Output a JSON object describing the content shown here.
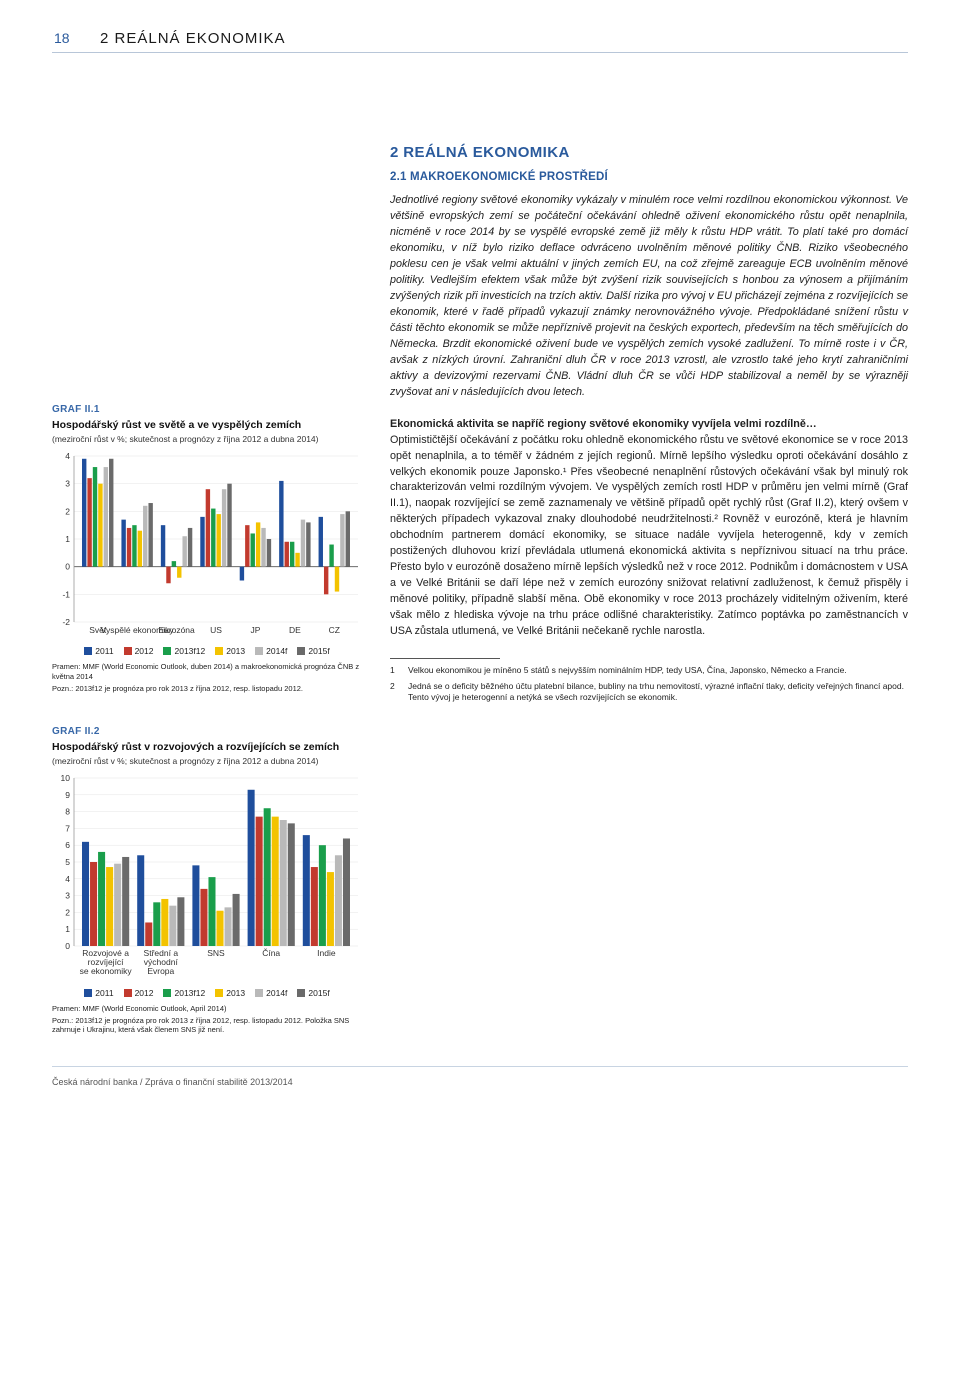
{
  "page": {
    "number": "18",
    "running_head": "2 REÁLNÁ EKONOMIKA",
    "footer": "Česká národní banka / Zpráva o finanční stabilitě 2013/2014"
  },
  "right": {
    "h1": "2 REÁLNÁ EKONOMIKA",
    "h2": "2.1 MAKROEKONOMICKÉ PROSTŘEDÍ",
    "intro": "Jednotlivé regiony světové ekonomiky vykázaly v minulém roce velmi roz­dílnou ekonomickou výkonnost. Ve většině evropských zemí se počáteční očekávání ohledně oživení ekonomického růstu opět nenaplnila, nicméně v roce 2014 by se vyspělé evropské země již měly k růstu HDP vrátit. To platí také pro domácí ekonomiku, v níž bylo riziko deflace odvráceno uvolněním měnové politiky ČNB. Riziko všeobecného poklesu cen je však velmi aktuální v jiných zemích EU, na což zřejmě zareaguje ECB uvolně­ním měnové politiky. Vedlejším efektem však může být zvýšení rizik souvi­sejících s honbou za výnosem a přijímáním zvýšených rizik při investicích na trzích aktiv. Další rizika pro vývoj v EU přicházejí zejména z rozvíjejících se ekonomik, které v řadě případů vykazují známky nerovnovážného vý­voje. Předpokládané snížení růstu v části těchto ekonomik se může ne­příznivě projevit na českých exportech, především na těch směřujících do Německa. Brzdit ekonomické oživení bude ve vyspělých zemích vyso­ké zadlužení. To mírně roste i v ČR, avšak z nízkých úrovní. Zahraniční dluh ČR v roce 2013 vzrostl, ale vzrostlo také jeho krytí zahraničními akti­vy a devizovými rezervami ČNB. Vládní dluh ČR se vůči HDP stabilizoval a neměl by se výrazněji zvyšovat ani v následujících dvou letech.",
    "lead": "Ekonomická aktivita se napříč regiony světové ekonomiky vyvíjela velmi rozdílně…",
    "body": "Optimističtější očekávání z počátku roku ohledně ekonomického růstu ve světové ekonomice se v roce 2013 opět nenaplnila, a to téměř v žád­ném z jejích regionů. Mírně lepšího výsledku oproti očekávání dosáhlo z velkých ekonomik pouze Japonsko.¹ Přes všeobecné nenaplnění růsto­vých očekávání však byl minulý rok charakterizován velmi rozdílným vývo­jem. Ve vyspělých zemích rostl HDP v průměru jen velmi mírně (Graf II.1), naopak rozvíjející se země zaznamenaly ve většině případů opět rychlý růst (Graf II.2), který ovšem v některých případech vykazoval znaky dlou­hodobé neudržitelnosti.² Rovněž v eurozóně, která je hlavním obchodním partnerem domácí ekonomiky, se situace nadále vyvíjela heterogenně, kdy v zemích postižených dluhovou krizí převládala utlumená ekonomická aktivita s nepříznivou situací na trhu práce. Přesto bylo v eurozóně dosa­ženo mírně lepších výsledků než v roce 2012. Podnikům i domácnostem v USA a ve Velké Británii se daří lépe než v zemích eurozóny snižovat rela­tivní zadluženost, k čemuž přispěly i měnové politiky, případně slabší mě­na. Obě ekonomiky v roce 2013 procházely viditelným oživením, které však mělo z hlediska vývoje na trhu práce odlišné charakteristiky. Zatímco poptávka po zaměstnancích v USA zůstala utlumená, ve Velké Británii nečekaně rychle narostla.",
    "fn1_n": "1",
    "fn1": "Velkou ekonomikou je míněno 5 států s nejvyšším nominálním HDP, tedy USA, Čína, Ja­ponsko, Německo a Francie.",
    "fn2_n": "2",
    "fn2": "Jedná se o deficity běžného účtu platební bilance, bubliny na trhu nemovitostí, výrazné inflační tlaky, deficity veřejných financí apod. Tento vývoj je heterogenní a netýká se všech rozvíjejících se ekonomik."
  },
  "series_labels": [
    "2011",
    "2012",
    "2013f12",
    "2013",
    "2014f",
    "2015f"
  ],
  "series_colors": [
    "#1f4e9c",
    "#c23a2e",
    "#1a9e4b",
    "#f3c300",
    "#b9b9b9",
    "#6a6a6a"
  ],
  "chart1": {
    "label": "GRAF II.1",
    "title": "Hospodářský růst ve světě a ve vyspělých zemích",
    "sub": "(meziroční růst v %; skutečnost a prognózy z října 2012 a dubna 2014)",
    "ylim": [
      -2,
      4
    ],
    "ytick_step": 1,
    "categories": [
      "Svět",
      "Vyspělé ekonomiky",
      "Eurozóna",
      "US",
      "JP",
      "DE",
      "CZ"
    ],
    "values": {
      "2011": [
        3.9,
        1.7,
        1.5,
        1.8,
        -0.5,
        3.1,
        1.8
      ],
      "2012": [
        3.2,
        1.4,
        -0.6,
        2.8,
        1.5,
        0.9,
        -1.0
      ],
      "2013f12": [
        3.6,
        1.5,
        0.2,
        2.1,
        1.2,
        0.9,
        0.8
      ],
      "2013": [
        3.0,
        1.3,
        -0.4,
        1.9,
        1.6,
        0.5,
        -0.9
      ],
      "2014f": [
        3.6,
        2.2,
        1.1,
        2.8,
        1.4,
        1.7,
        1.9
      ],
      "2015f": [
        3.9,
        2.3,
        1.4,
        3.0,
        1.0,
        1.6,
        2.0
      ]
    },
    "src": "Pramen: MMF (World Economic Outlook, duben 2014) a makroekonomická prognóza ČNB z května 2014",
    "note": "Pozn.: 2013f12 je prognóza pro rok 2013 z října 2012, resp. listopadu 2012.",
    "axis_color": "#999",
    "grid_color": "#e5e5e5",
    "bg": "#ffffff",
    "label_fontsize": 8.5,
    "bar_group_gap": 0.4
  },
  "chart2": {
    "label": "GRAF II.2",
    "title": "Hospodářský růst v rozvojových a rozvíjejících se zemích",
    "sub": "(meziroční růst v %; skutečnost a prognózy z října 2012 a dubna 2014)",
    "ylim": [
      0,
      10
    ],
    "ytick_step": 1,
    "categories": [
      "Rozvojové a rozvíjející se ekonomiky",
      "Střední a východní Evropa",
      "SNS",
      "Čína",
      "Indie"
    ],
    "values": {
      "2011": [
        6.2,
        5.4,
        4.8,
        9.3,
        6.6
      ],
      "2012": [
        5.0,
        1.4,
        3.4,
        7.7,
        4.7
      ],
      "2013f12": [
        5.6,
        2.6,
        4.1,
        8.2,
        6.0
      ],
      "2013": [
        4.7,
        2.8,
        2.1,
        7.7,
        4.4
      ],
      "2014f": [
        4.9,
        2.4,
        2.3,
        7.5,
        5.4
      ],
      "2015f": [
        5.3,
        2.9,
        3.1,
        7.3,
        6.4
      ]
    },
    "src": "Pramen: MMF (World Economic Outlook, April 2014)",
    "note": "Pozn.: 2013f12 je prognóza pro rok 2013 z října 2012, resp. listopadu 2012. Položka SNS zahrnuje i Ukrajinu, která však členem SNS již není.",
    "axis_color": "#999",
    "grid_color": "#e5e5e5",
    "bg": "#ffffff",
    "label_fontsize": 8.5
  }
}
